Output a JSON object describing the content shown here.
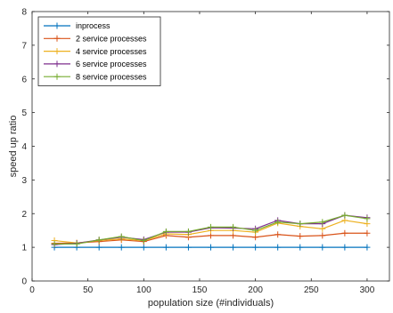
{
  "chart_data": {
    "type": "line",
    "title": "",
    "xlabel": "population size (#individuals)",
    "ylabel": "speed up ratio",
    "xlim": [
      0,
      320
    ],
    "ylim": [
      0,
      8
    ],
    "xticks": [
      0,
      50,
      100,
      150,
      200,
      250,
      300
    ],
    "yticks": [
      0,
      1,
      2,
      3,
      4,
      5,
      6,
      7,
      8
    ],
    "grid": false,
    "legend_position": "top-left",
    "marker": "plus",
    "x": [
      20,
      40,
      60,
      80,
      100,
      120,
      140,
      160,
      180,
      200,
      220,
      240,
      260,
      280,
      300
    ],
    "series": [
      {
        "name": "inprocess",
        "color": "#0072BD",
        "values": [
          1.0,
          1.0,
          1.0,
          1.0,
          1.0,
          1.0,
          1.0,
          1.0,
          1.0,
          1.0,
          1.0,
          1.0,
          1.0,
          1.0,
          1.0
        ]
      },
      {
        "name": "2 service processes",
        "color": "#D95319",
        "values": [
          1.12,
          1.13,
          1.17,
          1.22,
          1.17,
          1.35,
          1.3,
          1.35,
          1.35,
          1.3,
          1.38,
          1.33,
          1.35,
          1.42,
          1.42
        ]
      },
      {
        "name": "4 service processes",
        "color": "#EDB120",
        "values": [
          1.2,
          1.13,
          1.2,
          1.25,
          1.2,
          1.4,
          1.38,
          1.5,
          1.5,
          1.45,
          1.72,
          1.62,
          1.55,
          1.8,
          1.7
        ]
      },
      {
        "name": "6 service processes",
        "color": "#7E2F8E",
        "values": [
          1.08,
          1.12,
          1.22,
          1.3,
          1.23,
          1.45,
          1.45,
          1.58,
          1.57,
          1.55,
          1.8,
          1.7,
          1.7,
          1.95,
          1.88
        ]
      },
      {
        "name": "8 service processes",
        "color": "#77AC30",
        "values": [
          1.1,
          1.1,
          1.22,
          1.32,
          1.2,
          1.47,
          1.47,
          1.6,
          1.6,
          1.5,
          1.75,
          1.7,
          1.75,
          1.95,
          1.85
        ]
      }
    ]
  }
}
